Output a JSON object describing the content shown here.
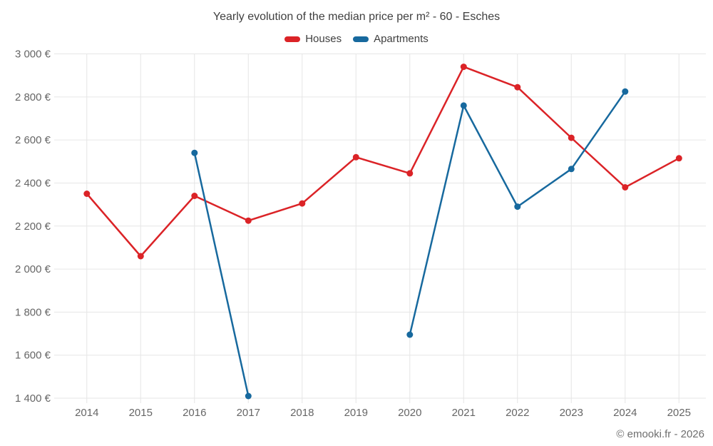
{
  "footer": {
    "credit": "© emooki.fr - 2026"
  },
  "colors": {
    "background": "#ffffff",
    "grid": "#e6e6e6",
    "axis_text": "#666666",
    "title_text": "#3f3f3f",
    "houses": "#db2327",
    "apartments": "#17699e"
  },
  "chart_data": {
    "type": "line",
    "title": "Yearly evolution of the median price per m² - 60 - Esches",
    "categories": [
      "2014",
      "2015",
      "2016",
      "2017",
      "2018",
      "2019",
      "2020",
      "2021",
      "2022",
      "2023",
      "2024",
      "2025"
    ],
    "series": [
      {
        "name": "Houses",
        "color": "#db2327",
        "values": [
          2350,
          2060,
          2340,
          2225,
          2305,
          2520,
          2445,
          2940,
          2845,
          2610,
          2380,
          2515
        ]
      },
      {
        "name": "Apartments",
        "color": "#17699e",
        "values": [
          null,
          null,
          2540,
          1410,
          null,
          null,
          1695,
          2760,
          2290,
          2465,
          2825,
          null
        ]
      }
    ],
    "ylim": [
      1400,
      3000
    ],
    "ytick_step": 200,
    "ytick_suffix": " €",
    "grid": true,
    "legend_position": "top",
    "marker": "circle"
  }
}
